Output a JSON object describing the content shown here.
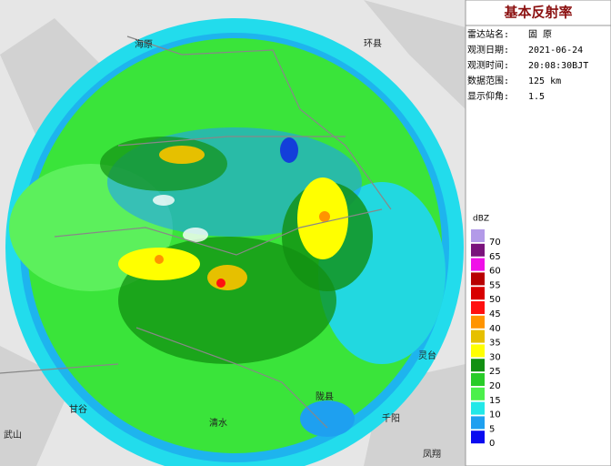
{
  "header": {
    "title": "基本反射率"
  },
  "info": [
    {
      "label": "雷达站名:",
      "value": "固 原"
    },
    {
      "label": "观测日期:",
      "value": "2021-06-24"
    },
    {
      "label": "观测时间:",
      "value": "20:08:30BJT"
    },
    {
      "label": "数据范围:",
      "value": "125 km"
    },
    {
      "label": "显示仰角:",
      "value": "1.5"
    }
  ],
  "legend": {
    "unit": "dBZ",
    "items": [
      {
        "value": 70,
        "color": "#b39ae8"
      },
      {
        "value": 65,
        "color": "#7a137c"
      },
      {
        "value": 60,
        "color": "#f010e8"
      },
      {
        "value": 55,
        "color": "#b80000"
      },
      {
        "value": 50,
        "color": "#d80000"
      },
      {
        "value": 45,
        "color": "#ff1010"
      },
      {
        "value": 40,
        "color": "#ff9400"
      },
      {
        "value": 35,
        "color": "#e6c000"
      },
      {
        "value": 30,
        "color": "#ffff00"
      },
      {
        "value": 25,
        "color": "#129012"
      },
      {
        "value": 20,
        "color": "#28cc28"
      },
      {
        "value": 15,
        "color": "#4cf04c"
      },
      {
        "value": 10,
        "color": "#22e8e8"
      },
      {
        "value": 5,
        "color": "#1ea0f0"
      },
      {
        "value": 0,
        "color": "#0a0af0"
      }
    ]
  },
  "places": [
    {
      "label": "海原"
    },
    {
      "label": "环县"
    },
    {
      "label": "甘谷"
    },
    {
      "label": "清水"
    },
    {
      "label": "武山"
    },
    {
      "label": "陇县"
    },
    {
      "label": "千阳"
    },
    {
      "label": "灵台"
    },
    {
      "label": "凤翔"
    }
  ]
}
